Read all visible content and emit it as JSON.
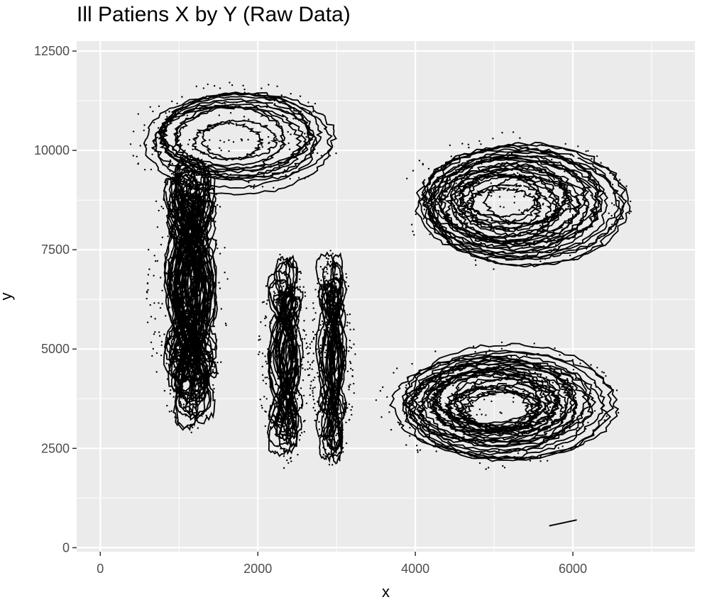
{
  "chart_data": {
    "type": "scatter",
    "title": "Ill Patiens X by Y (Raw Data)",
    "xlabel": "x",
    "ylabel": "y",
    "xlim": [
      -300,
      7550
    ],
    "ylim": [
      -100,
      12750
    ],
    "x_ticks": [
      0,
      2000,
      4000,
      6000
    ],
    "y_ticks": [
      0,
      2500,
      5000,
      7500,
      10000,
      12500
    ],
    "x_tick_labels": [
      "0",
      "2000",
      "4000",
      "6000"
    ],
    "y_tick_labels": [
      "0",
      "2500",
      "5000",
      "7500",
      "10000",
      "12500"
    ],
    "grid": true,
    "background_color": "#ebebeb",
    "grid_color": "#ffffff",
    "mark_color": "#000000",
    "clusters": [
      {
        "name": "upper-left loops",
        "center_x": 1700,
        "center_y": 10300,
        "radius_x": 1200,
        "radius_y": 1300,
        "loops": 14
      },
      {
        "name": "upper-right loops",
        "center_x": 5250,
        "center_y": 8700,
        "radius_x": 1300,
        "radius_y": 1600,
        "loops": 28
      },
      {
        "name": "lower-right loops",
        "center_x": 5050,
        "center_y": 3600,
        "radius_x": 1350,
        "radius_y": 1500,
        "loops": 30
      },
      {
        "name": "left column",
        "center_x": 1100,
        "center_y": 6500,
        "radius_x": 450,
        "radius_y": 3300,
        "loops": 40
      },
      {
        "name": "middle column left",
        "center_x": 2350,
        "center_y": 4700,
        "radius_x": 300,
        "radius_y": 2500,
        "loops": 18
      },
      {
        "name": "middle column right",
        "center_x": 2950,
        "center_y": 4800,
        "radius_x": 250,
        "radius_y": 2500,
        "loops": 16
      }
    ],
    "isolated_segment": {
      "x": [
        5700,
        6050
      ],
      "y": [
        550,
        700
      ]
    }
  }
}
